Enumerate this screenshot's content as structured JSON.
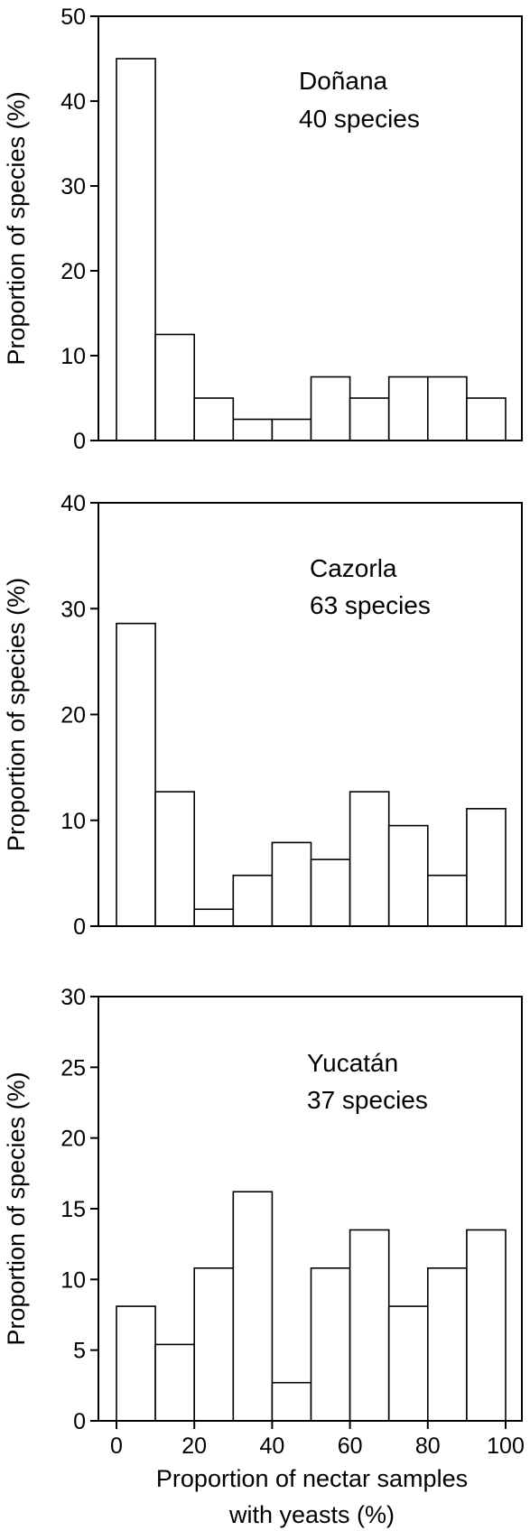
{
  "chart_data": [
    {
      "type": "bar",
      "annotation": [
        "Doñana",
        "40 species"
      ],
      "bin_edges": [
        0,
        10,
        20,
        30,
        40,
        50,
        60,
        70,
        80,
        90,
        100
      ],
      "values": [
        45,
        12.5,
        5,
        2.5,
        2.5,
        7.5,
        5,
        7.5,
        7.5,
        5
      ],
      "ylabel": "Proportion of species (%)",
      "ylim": [
        0,
        50
      ],
      "yticks": [
        0,
        10,
        20,
        30,
        40,
        50
      ],
      "xlim": [
        0,
        100
      ]
    },
    {
      "type": "bar",
      "annotation": [
        "Cazorla",
        "63 species"
      ],
      "bin_edges": [
        0,
        10,
        20,
        30,
        40,
        50,
        60,
        70,
        80,
        90,
        100
      ],
      "values": [
        28.6,
        12.7,
        1.6,
        4.8,
        7.9,
        6.3,
        12.7,
        9.5,
        4.8,
        11.1
      ],
      "ylabel": "Proportion of species (%)",
      "ylim": [
        0,
        40
      ],
      "yticks": [
        0,
        10,
        20,
        30,
        40
      ],
      "xlim": [
        0,
        100
      ]
    },
    {
      "type": "bar",
      "annotation": [
        "Yucatán",
        "37 species"
      ],
      "bin_edges": [
        0,
        10,
        20,
        30,
        40,
        50,
        60,
        70,
        80,
        90,
        100
      ],
      "values": [
        8.1,
        5.4,
        10.8,
        16.2,
        2.7,
        10.8,
        13.5,
        8.1,
        10.8,
        13.5
      ],
      "ylabel": "Proportion of species (%)",
      "ylim": [
        0,
        30
      ],
      "yticks": [
        0,
        5,
        10,
        15,
        20,
        25,
        30
      ],
      "xlim": [
        0,
        100
      ],
      "xticks": [
        0,
        20,
        40,
        60,
        80,
        100
      ],
      "xlabel": [
        "Proportion of nectar samples",
        "with yeasts (%)"
      ]
    }
  ]
}
